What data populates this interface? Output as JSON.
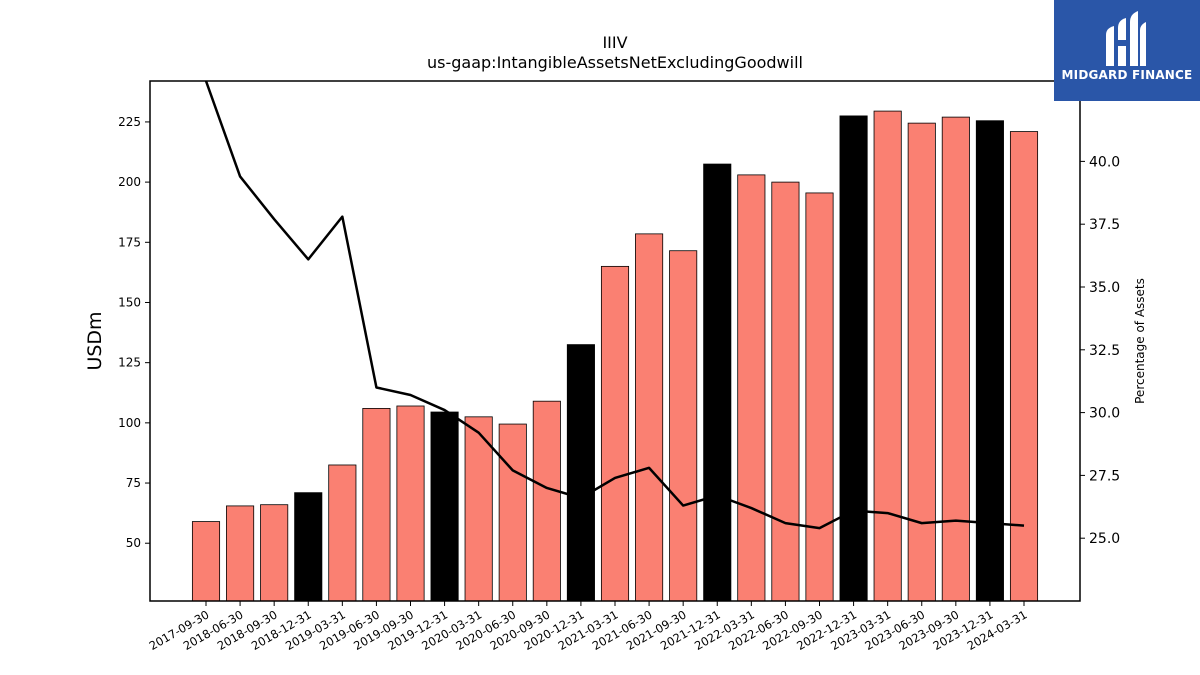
{
  "chart_data": {
    "type": "bar",
    "title": "IIIV",
    "subtitle": "us-gaap:IntangibleAssetsNetExcludingGoodwill",
    "ylabel": "USDm",
    "y2label": "Percentage of Assets",
    "ylim": [
      26,
      242
    ],
    "y2lim": [
      22.5,
      43.2
    ],
    "yticks": [
      50,
      75,
      100,
      125,
      150,
      175,
      200,
      225
    ],
    "y2ticks": [
      25.0,
      27.5,
      30.0,
      32.5,
      35.0,
      37.5,
      40.0
    ],
    "grid": false,
    "categories": [
      "2017-09-30",
      "2018-06-30",
      "2018-09-30",
      "2018-12-31",
      "2019-03-31",
      "2019-06-30",
      "2019-09-30",
      "2019-12-31",
      "2020-03-31",
      "2020-06-30",
      "2020-09-30",
      "2020-12-31",
      "2021-03-31",
      "2021-06-30",
      "2021-09-30",
      "2021-12-31",
      "2022-03-31",
      "2022-06-30",
      "2022-09-30",
      "2022-12-31",
      "2023-03-31",
      "2023-06-30",
      "2023-09-30",
      "2023-12-31",
      "2024-03-31"
    ],
    "series": [
      {
        "kind": "bar",
        "values": [
          59,
          65.5,
          66,
          71,
          82.5,
          106,
          107,
          104.5,
          102.5,
          99.5,
          109,
          132.5,
          165,
          178.5,
          171.5,
          207.5,
          203,
          200,
          195.5,
          227.5,
          229.5,
          224.5,
          227,
          225.5,
          221
        ],
        "colors": [
          "#fa8072",
          "#fa8072",
          "#fa8072",
          "#000000",
          "#fa8072",
          "#fa8072",
          "#fa8072",
          "#000000",
          "#fa8072",
          "#fa8072",
          "#fa8072",
          "#000000",
          "#fa8072",
          "#fa8072",
          "#fa8072",
          "#000000",
          "#fa8072",
          "#fa8072",
          "#fa8072",
          "#000000",
          "#fa8072",
          "#fa8072",
          "#fa8072",
          "#000000",
          "#fa8072"
        ]
      },
      {
        "kind": "line",
        "axis": "right",
        "color": "#000000",
        "values": [
          43.2,
          39.4,
          37.7,
          36.1,
          37.8,
          31.0,
          30.7,
          30.1,
          29.2,
          27.7,
          27.0,
          26.6,
          27.4,
          27.8,
          26.3,
          26.7,
          26.2,
          25.6,
          25.4,
          26.1,
          26.0,
          25.6,
          25.7,
          25.6,
          25.5
        ]
      }
    ]
  },
  "logo": {
    "text": "MIDGARD FINANCE",
    "icon": "midgard-m-logo-icon",
    "color": "#2a56a8"
  }
}
